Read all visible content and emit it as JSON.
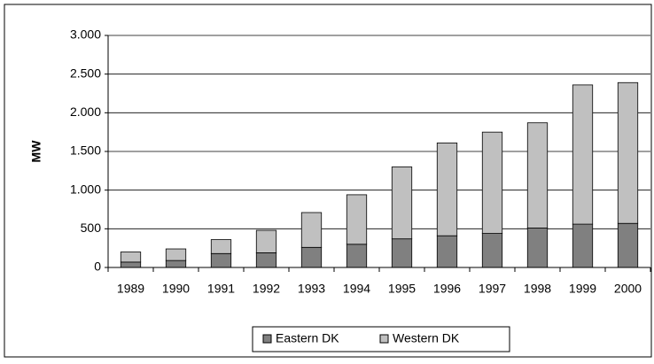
{
  "chart_data": {
    "type": "stacked-bar",
    "y_label": "MW",
    "categories": [
      "1989",
      "1990",
      "1991",
      "1992",
      "1993",
      "1994",
      "1995",
      "1996",
      "1997",
      "1998",
      "1999",
      "2000"
    ],
    "series": [
      {
        "name": "Eastern DK",
        "color": "#808080",
        "values": [
          70,
          90,
          180,
          190,
          260,
          300,
          370,
          410,
          440,
          510,
          560,
          570
        ]
      },
      {
        "name": "Western DK",
        "color": "#c0c0c0",
        "values": [
          130,
          150,
          180,
          290,
          450,
          640,
          930,
          1200,
          1310,
          1360,
          1800,
          1820
        ]
      }
    ],
    "ylim": [
      0,
      3000
    ],
    "yticks": [
      0,
      500,
      {
        "value": 1000,
        "label": "1.000"
      },
      {
        "value": 1500,
        "label": "1.500"
      },
      {
        "value": 2000,
        "label": "2.000"
      },
      {
        "value": 2500,
        "label": "2.500"
      },
      {
        "value": 3000,
        "label": "3.000"
      }
    ],
    "grid": true,
    "legend": "bottom"
  }
}
